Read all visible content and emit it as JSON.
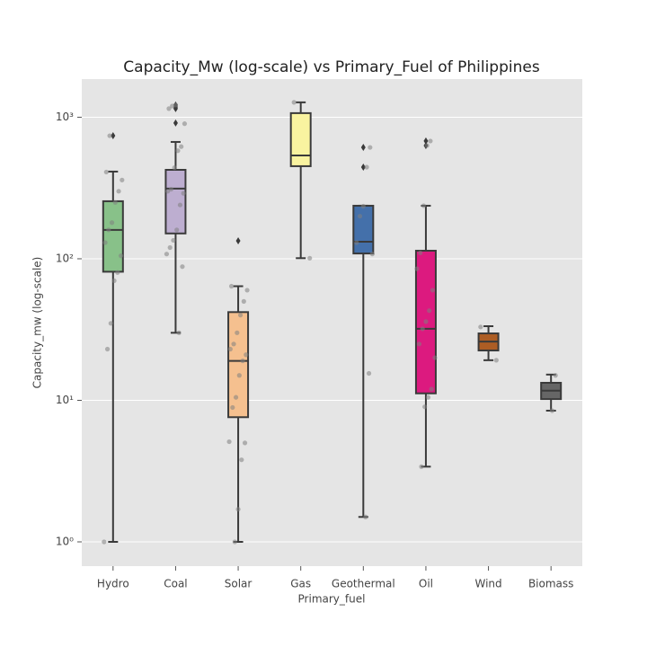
{
  "chart_data": {
    "type": "box",
    "title": "Capacity_Mw (log-scale) vs  Primary_Fuel of Philippines",
    "xlabel": "Primary_fuel",
    "ylabel": "Capacity_mw (log-scale)",
    "log_y": true,
    "grid": true,
    "categories": [
      "Hydro",
      "Coal",
      "Solar",
      "Gas",
      "Geothermal",
      "Oil",
      "Wind",
      "Biomass"
    ],
    "colors": [
      "#88c189",
      "#bdaed0",
      "#f5c08f",
      "#f9f3a0",
      "#4470aa",
      "#dc1a7f",
      "#ad5d24",
      "#666666"
    ],
    "boxes": [
      {
        "low": 1,
        "q1": 81,
        "median": 160,
        "q3": 255,
        "high": 413,
        "outliers": [
          740
        ],
        "points": [
          1,
          23,
          35,
          70,
          80,
          105,
          130,
          160,
          180,
          250,
          300,
          360,
          410,
          740
        ]
      },
      {
        "low": 30,
        "q1": 151,
        "median": 313,
        "q3": 425,
        "high": 669,
        "outliers": [
          910,
          1150,
          1183,
          1220
        ],
        "points": [
          30,
          88,
          108,
          120,
          135,
          160,
          240,
          290,
          300,
          310,
          440,
          580,
          620,
          900,
          1150,
          1200,
          1220
        ]
      },
      {
        "low": 1,
        "q1": 7.6,
        "median": 19,
        "q3": 42,
        "high": 64,
        "outliers": [
          134
        ],
        "points": [
          1,
          1.7,
          3.8,
          5,
          5.1,
          8.9,
          10.5,
          15,
          19,
          21,
          23,
          25,
          30,
          40,
          50,
          60,
          64
        ]
      },
      {
        "low": 101,
        "q1": 451,
        "median": 537,
        "q3": 1069,
        "high": 1274,
        "outliers": [],
        "points": [
          101,
          1274
        ]
      },
      {
        "low": 1.5,
        "q1": 109,
        "median": 132,
        "q3": 237,
        "high": 237,
        "outliers": [
          444,
          612
        ],
        "points": [
          1.5,
          15.5,
          108,
          130,
          200,
          235,
          444,
          612
        ]
      },
      {
        "low": 3.4,
        "q1": 11.2,
        "median": 32,
        "q3": 114,
        "high": 237,
        "outliers": [
          631,
          679
        ],
        "points": [
          3.4,
          9,
          10.5,
          12,
          20,
          25,
          32,
          36,
          43,
          60,
          85,
          110,
          237,
          631,
          679
        ]
      },
      {
        "low": 19.2,
        "q1": 22.5,
        "median": 26,
        "q3": 29.7,
        "high": 33.4,
        "outliers": [],
        "points": [
          19.2,
          33
        ]
      },
      {
        "low": 8.45,
        "q1": 10.2,
        "median": 11.7,
        "q3": 13.3,
        "high": 15.2,
        "outliers": [],
        "points": [
          8.45,
          15
        ]
      }
    ],
    "ylim": [
      0.674,
      1860
    ],
    "yticks": [
      {
        "value": 1,
        "label": "10⁰"
      },
      {
        "value": 10,
        "label": "10¹"
      },
      {
        "value": 100,
        "label": "10²"
      },
      {
        "value": 1000,
        "label": "10³"
      }
    ]
  }
}
